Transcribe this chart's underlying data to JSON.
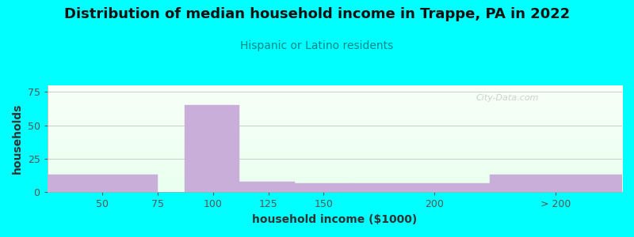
{
  "title": "Distribution of median household income in Trappe, PA in 2022",
  "subtitle": "Hispanic or Latino residents",
  "xlabel": "household income ($1000)",
  "ylabel": "households",
  "bg_color": "#00FFFF",
  "bar_color": "#c8aed8",
  "bar_edge_color": "#c8aed8",
  "values": [
    13,
    0,
    65,
    8,
    7,
    7,
    13
  ],
  "left_edges": [
    25,
    75,
    87,
    112,
    137,
    162,
    225
  ],
  "right_edges": [
    75,
    87,
    112,
    137,
    162,
    225,
    285
  ],
  "ylim": [
    0,
    80
  ],
  "xlim": [
    25,
    285
  ],
  "yticks": [
    0,
    25,
    50,
    75
  ],
  "xtick_positions": [
    50,
    75,
    100,
    125,
    150,
    200,
    255
  ],
  "xtick_labels": [
    "50",
    "75",
    "100",
    "125",
    "150",
    "200",
    "> 200"
  ],
  "title_fontsize": 13,
  "subtitle_fontsize": 10,
  "axis_label_fontsize": 10,
  "subtitle_color": "#008888",
  "title_color": "#111111",
  "watermark": "City-Data.com",
  "grid_color": "#cccccc",
  "plot_bg_top": "#f0fff0",
  "plot_bg_bottom": "#fafff5"
}
